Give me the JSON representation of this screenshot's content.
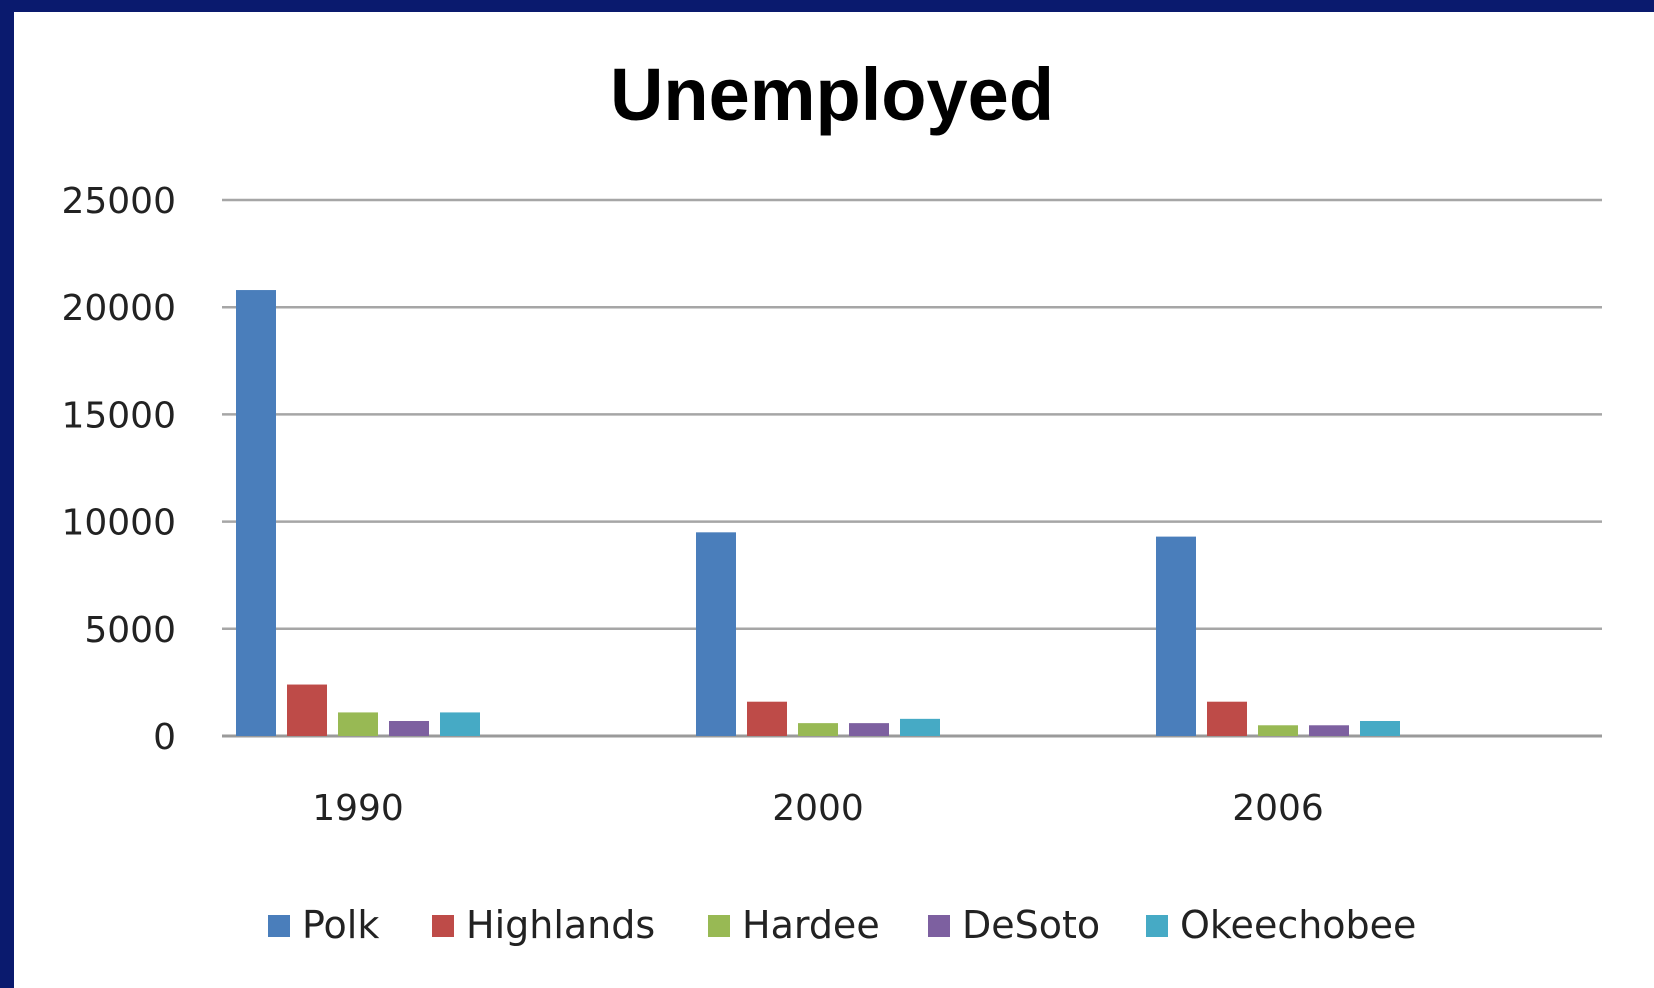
{
  "chart_data": {
    "type": "bar",
    "title": "Unemployed",
    "xlabel": "",
    "ylabel": "",
    "categories": [
      "1990",
      "2000",
      "2006"
    ],
    "ylim": [
      0,
      25000
    ],
    "yticks": [
      "0",
      "5000",
      "10000",
      "15000",
      "20000",
      "25000"
    ],
    "grid": true,
    "legend_position": "bottom",
    "series": [
      {
        "name": "Polk",
        "color": "#4a7ebb",
        "values": [
          20800,
          9500,
          9300
        ]
      },
      {
        "name": "Highlands",
        "color": "#be4b48",
        "values": [
          2400,
          1600,
          1600
        ]
      },
      {
        "name": "Hardee",
        "color": "#98b954",
        "values": [
          1100,
          600,
          500
        ]
      },
      {
        "name": "DeSoto",
        "color": "#7d60a0",
        "values": [
          700,
          600,
          500
        ]
      },
      {
        "name": "Okeechobee",
        "color": "#46aac5",
        "values": [
          1100,
          800,
          700
        ]
      }
    ]
  }
}
